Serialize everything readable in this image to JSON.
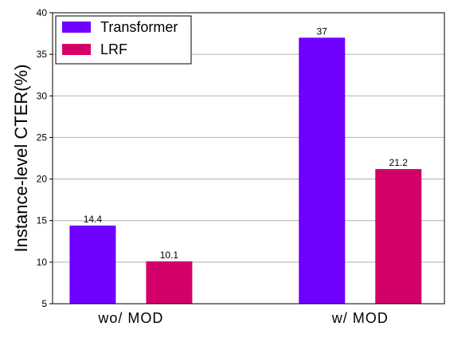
{
  "chart_data": {
    "type": "bar",
    "title": "",
    "xlabel": "",
    "ylabel": "Instance-level CTER(%)",
    "categories": [
      "wo/ MOD",
      "w/ MOD"
    ],
    "series": [
      {
        "name": "Transformer",
        "color": "#7000ff",
        "values": [
          14.4,
          37
        ],
        "labels": [
          "14.4",
          "37"
        ]
      },
      {
        "name": "LRF",
        "color": "#d4006a",
        "values": [
          10.1,
          21.2
        ],
        "labels": [
          "10.1",
          "21.2"
        ]
      }
    ],
    "ylim": [
      5,
      40
    ],
    "yticks": [
      5,
      10,
      15,
      20,
      25,
      30,
      35,
      40
    ],
    "ytick_labels": [
      "5",
      "10",
      "15",
      "20",
      "25",
      "30",
      "35",
      "40"
    ],
    "grid": true,
    "legend_position": "top-left"
  }
}
